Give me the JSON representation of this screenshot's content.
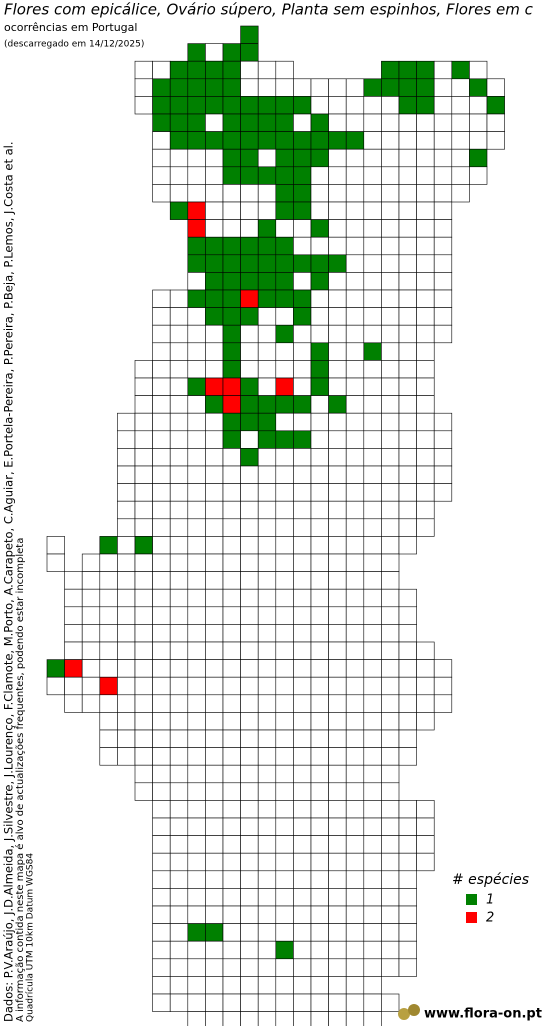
{
  "header": {
    "title": "Flores com epicálice, Ovário súpero, Planta sem espinhos, Flores em c",
    "subtitle": "ocorrências em Portugal",
    "date": "(descarregado em 14/12/2025)"
  },
  "credits": {
    "data": "Dados: P.V.Araújo, J.D.Almeida, J.Silvestre, J.Lourenço, F.Clamote, M.Porto, A.Carapeto, C.Aguiar, E.Portela-Pereira, P.Pereira, P.Beja, P.Lemos, J.Costa et al.",
    "note": "A informação contida neste mapa é alvo de actualizações frequentes, podendo estar incompleta",
    "grid": "Quadrícula UTM 10km Datum WGS84"
  },
  "legend": {
    "title": "# espécies",
    "items": [
      {
        "label": "1",
        "color": "#008000"
      },
      {
        "label": "2",
        "color": "#ff0000"
      }
    ]
  },
  "logo": {
    "text": "www.flora-on.pt"
  }
}
